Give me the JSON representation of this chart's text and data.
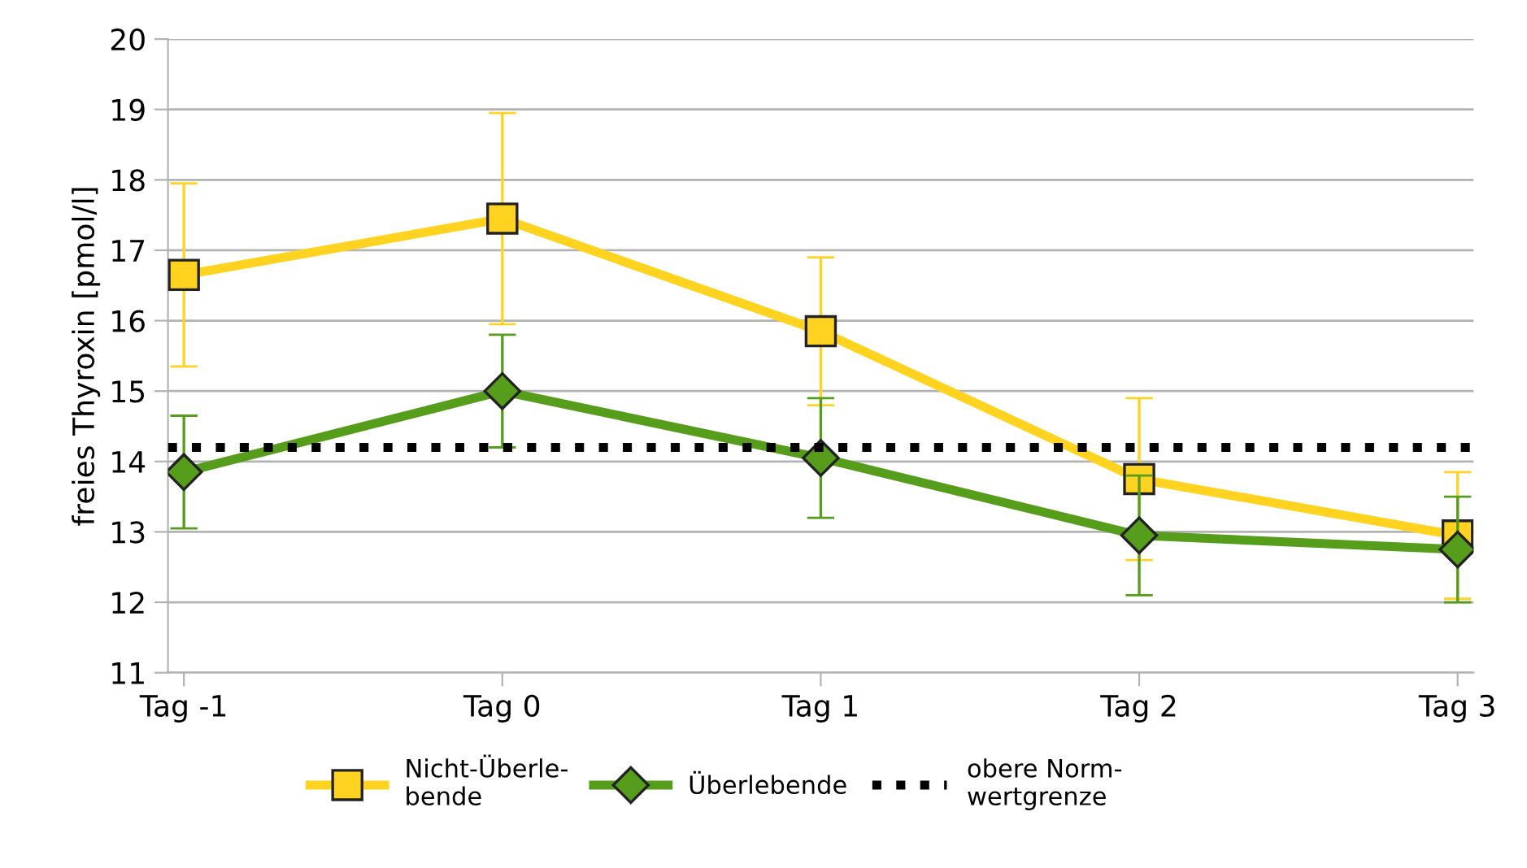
{
  "chart_data": {
    "type": "line",
    "ylabel": "freies Thyroxin [pmol/l]",
    "categories": [
      "Tag -1",
      "Tag 0",
      "Tag 1",
      "Tag 2",
      "Tag 3"
    ],
    "series": [
      {
        "name": "Nicht-Überle-\nbende",
        "color": "#ffd320",
        "marker": "square",
        "values": [
          16.65,
          17.45,
          15.85,
          13.75,
          12.95
        ],
        "errors": [
          1.3,
          1.5,
          1.05,
          1.15,
          0.9
        ]
      },
      {
        "name": "Überlebende",
        "color": "#579d1c",
        "marker": "diamond",
        "values": [
          13.85,
          15.0,
          14.05,
          12.95,
          12.75
        ],
        "errors": [
          0.8,
          0.8,
          0.85,
          0.85,
          0.75
        ]
      }
    ],
    "ref_lines": [
      {
        "axis": "y",
        "value": 14.2,
        "label": "obere Norm-\nwertgrenze",
        "color": "#000000",
        "line_style": "dotted"
      }
    ],
    "ylim": [
      11,
      20
    ],
    "yticks": [
      11,
      12,
      13,
      14,
      15,
      16,
      17,
      18,
      19,
      20
    ],
    "grid": "y",
    "legend": "bottom",
    "line_style": "solid"
  }
}
